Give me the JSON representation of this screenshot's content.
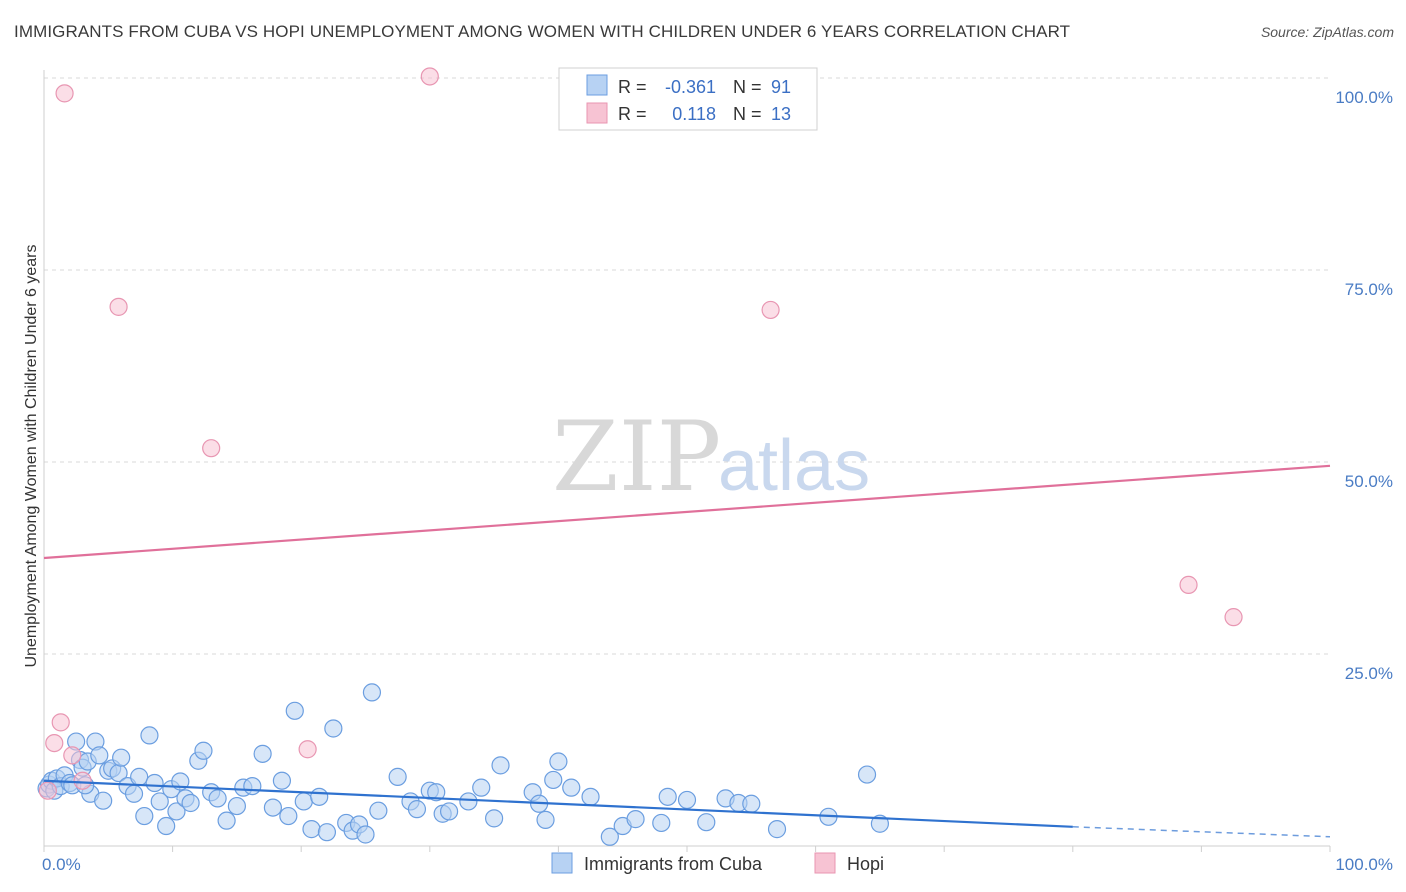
{
  "header": {
    "title": "IMMIGRANTS FROM CUBA VS HOPI UNEMPLOYMENT AMONG WOMEN WITH CHILDREN UNDER 6 YEARS CORRELATION CHART",
    "source": "Source: ZipAtlas.com"
  },
  "watermark": {
    "zip": "ZIP",
    "atlas": "atlas"
  },
  "legend": {
    "rows": [
      {
        "r_label": "R =",
        "r_value": "-0.361",
        "n_label": "N =",
        "n_value": "91"
      },
      {
        "r_label": "R =",
        "r_value": "0.118",
        "n_label": "N =",
        "n_value": "13"
      }
    ]
  },
  "bottom_legend": {
    "series1": "Immigrants from Cuba",
    "series2": "Hopi"
  },
  "colors": {
    "cuba_fill": "#b7d2f3",
    "cuba_stroke": "#6b9ee0",
    "cuba_line": "#2f72cf",
    "hopi_fill": "#f7c3d3",
    "hopi_stroke": "#e896b2",
    "hopi_line": "#e0709a",
    "grid": "#d8d8d8",
    "axis_text": "#4a7cc4"
  },
  "chart_data": {
    "type": "scatter",
    "title": "IMMIGRANTS FROM CUBA VS HOPI UNEMPLOYMENT AMONG WOMEN WITH CHILDREN UNDER 6 YEARS CORRELATION CHART",
    "xlabel": "",
    "ylabel": "Unemployment Among Women with Children Under 6 years",
    "xlim": [
      0,
      100
    ],
    "ylim": [
      0,
      103
    ],
    "x_tick_labels": [
      "0.0%",
      "100.0%"
    ],
    "y_ticks": [
      25,
      50,
      75,
      100
    ],
    "y_tick_labels": [
      "25.0%",
      "50.0%",
      "75.0%",
      "100.0%"
    ],
    "grid": true,
    "series": [
      {
        "name": "Immigrants from Cuba",
        "r": -0.361,
        "n": 91,
        "trend": {
          "x0": 0,
          "y0": 8.5,
          "x1": 80,
          "y1": 2.5,
          "dashed_to_x": 100,
          "dashed_to_y": 1.2
        },
        "points": [
          [
            0.2,
            7.5
          ],
          [
            0.4,
            8.0
          ],
          [
            0.6,
            8.5
          ],
          [
            0.8,
            7.2
          ],
          [
            1.0,
            8.8
          ],
          [
            1.3,
            7.8
          ],
          [
            1.6,
            9.2
          ],
          [
            2.0,
            8.2
          ],
          [
            2.2,
            7.9
          ],
          [
            2.5,
            13.6
          ],
          [
            2.8,
            11.2
          ],
          [
            3.0,
            10.2
          ],
          [
            3.4,
            11.0
          ],
          [
            3.6,
            6.8
          ],
          [
            4.0,
            13.6
          ],
          [
            4.3,
            11.8
          ],
          [
            4.6,
            5.9
          ],
          [
            5.0,
            9.8
          ],
          [
            5.3,
            10.1
          ],
          [
            5.8,
            9.5
          ],
          [
            6.0,
            11.5
          ],
          [
            6.5,
            7.8
          ],
          [
            7.0,
            6.8
          ],
          [
            7.4,
            9.0
          ],
          [
            7.8,
            3.9
          ],
          [
            8.2,
            14.4
          ],
          [
            8.6,
            8.2
          ],
          [
            9.0,
            5.8
          ],
          [
            9.5,
            2.6
          ],
          [
            9.9,
            7.4
          ],
          [
            10.3,
            4.5
          ],
          [
            10.6,
            8.4
          ],
          [
            11.0,
            6.2
          ],
          [
            11.4,
            5.6
          ],
          [
            12.0,
            11.1
          ],
          [
            12.4,
            12.4
          ],
          [
            13.0,
            7.0
          ],
          [
            13.5,
            6.2
          ],
          [
            14.2,
            3.3
          ],
          [
            15.0,
            5.2
          ],
          [
            15.5,
            7.6
          ],
          [
            16.2,
            7.8
          ],
          [
            17.0,
            12.0
          ],
          [
            17.8,
            5.0
          ],
          [
            18.5,
            8.5
          ],
          [
            19.0,
            3.9
          ],
          [
            19.5,
            17.6
          ],
          [
            20.2,
            5.8
          ],
          [
            20.8,
            2.2
          ],
          [
            21.4,
            6.4
          ],
          [
            22.0,
            1.8
          ],
          [
            22.5,
            15.3
          ],
          [
            23.5,
            3.0
          ],
          [
            24.0,
            2.0
          ],
          [
            24.5,
            2.8
          ],
          [
            25.0,
            1.5
          ],
          [
            25.5,
            20.0
          ],
          [
            26.0,
            4.6
          ],
          [
            27.5,
            9.0
          ],
          [
            28.5,
            5.8
          ],
          [
            29.0,
            4.8
          ],
          [
            30.0,
            7.2
          ],
          [
            30.5,
            7.0
          ],
          [
            31.0,
            4.2
          ],
          [
            31.5,
            4.5
          ],
          [
            33.0,
            5.8
          ],
          [
            34.0,
            7.6
          ],
          [
            35.0,
            3.6
          ],
          [
            35.5,
            10.5
          ],
          [
            38.0,
            7.0
          ],
          [
            38.5,
            5.5
          ],
          [
            39.0,
            3.4
          ],
          [
            39.6,
            8.6
          ],
          [
            40.0,
            11.0
          ],
          [
            41.0,
            7.6
          ],
          [
            42.5,
            6.4
          ],
          [
            44.0,
            1.2
          ],
          [
            45.0,
            2.6
          ],
          [
            46.0,
            3.5
          ],
          [
            48.0,
            3.0
          ],
          [
            48.5,
            6.4
          ],
          [
            50.0,
            6.0
          ],
          [
            51.5,
            3.1
          ],
          [
            53.0,
            6.2
          ],
          [
            54.0,
            5.6
          ],
          [
            55.0,
            5.5
          ],
          [
            57.0,
            2.2
          ],
          [
            61.0,
            3.8
          ],
          [
            64.0,
            9.3
          ],
          [
            65.0,
            2.9
          ],
          [
            3.2,
            7.9
          ]
        ]
      },
      {
        "name": "Hopi",
        "r": 0.118,
        "n": 13,
        "trend": {
          "x0": 0,
          "y0": 37.5,
          "x1": 100,
          "y1": 49.5
        },
        "points": [
          [
            0.3,
            7.2
          ],
          [
            0.8,
            13.4
          ],
          [
            1.3,
            16.1
          ],
          [
            1.6,
            98.0
          ],
          [
            2.2,
            11.8
          ],
          [
            3.0,
            8.5
          ],
          [
            5.8,
            70.2
          ],
          [
            13.0,
            51.8
          ],
          [
            20.5,
            12.6
          ],
          [
            30.0,
            100.2
          ],
          [
            56.5,
            69.8
          ],
          [
            89.0,
            34.0
          ],
          [
            92.5,
            29.8
          ]
        ]
      }
    ]
  }
}
